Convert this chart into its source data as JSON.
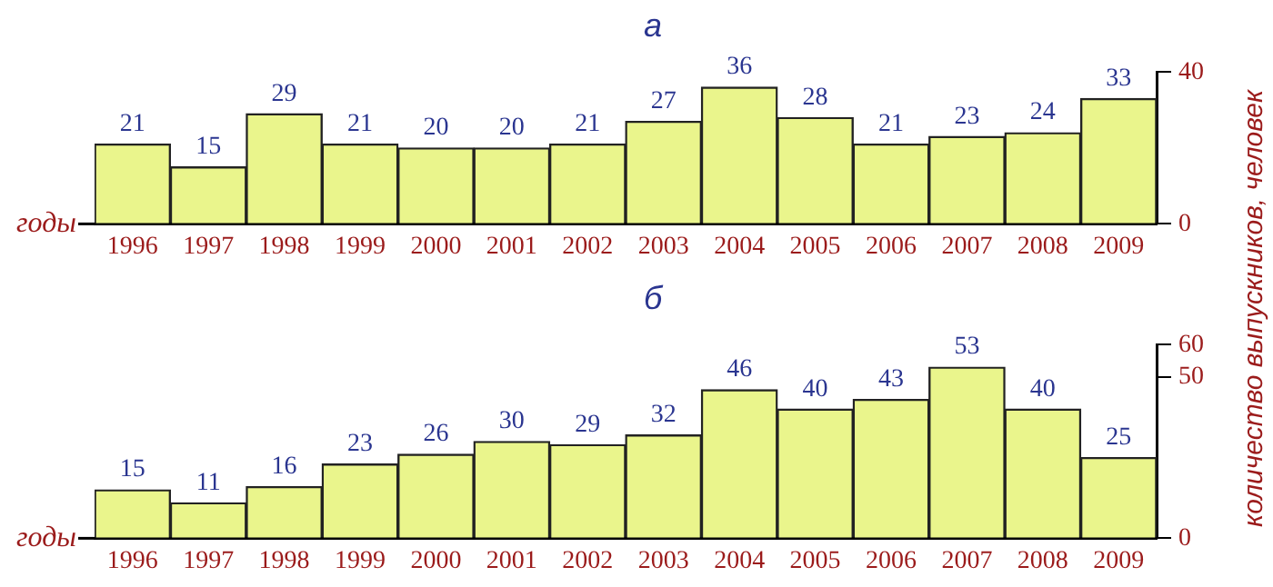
{
  "chart_data": [
    {
      "type": "bar",
      "title": "а",
      "xlabel": "годы",
      "ylabel": "количество выпускников, человек",
      "categories": [
        "1996",
        "1997",
        "1998",
        "1999",
        "2000",
        "2001",
        "2002",
        "2003",
        "2004",
        "2005",
        "2006",
        "2007",
        "2008",
        "2009"
      ],
      "values": [
        21,
        15,
        29,
        21,
        20,
        20,
        21,
        27,
        36,
        28,
        21,
        23,
        24,
        33
      ],
      "color": "#eaf58c",
      "ylim": [
        0,
        40
      ],
      "yticks": [
        0,
        40
      ],
      "grid": false,
      "legend": false,
      "data_labels": true
    },
    {
      "type": "bar",
      "title": "б",
      "xlabel": "годы",
      "categories": [
        "1996",
        "1997",
        "1998",
        "1999",
        "2000",
        "2001",
        "2002",
        "2003",
        "2004",
        "2005",
        "2006",
        "2007",
        "2008",
        "2009"
      ],
      "values": [
        15,
        11,
        16,
        23,
        26,
        30,
        29,
        32,
        46,
        40,
        43,
        53,
        40,
        25
      ],
      "color": "#eaf58c",
      "ylim": [
        0,
        60
      ],
      "yticks": [
        0,
        50,
        60
      ],
      "grid": false,
      "legend": false,
      "data_labels": true
    }
  ]
}
